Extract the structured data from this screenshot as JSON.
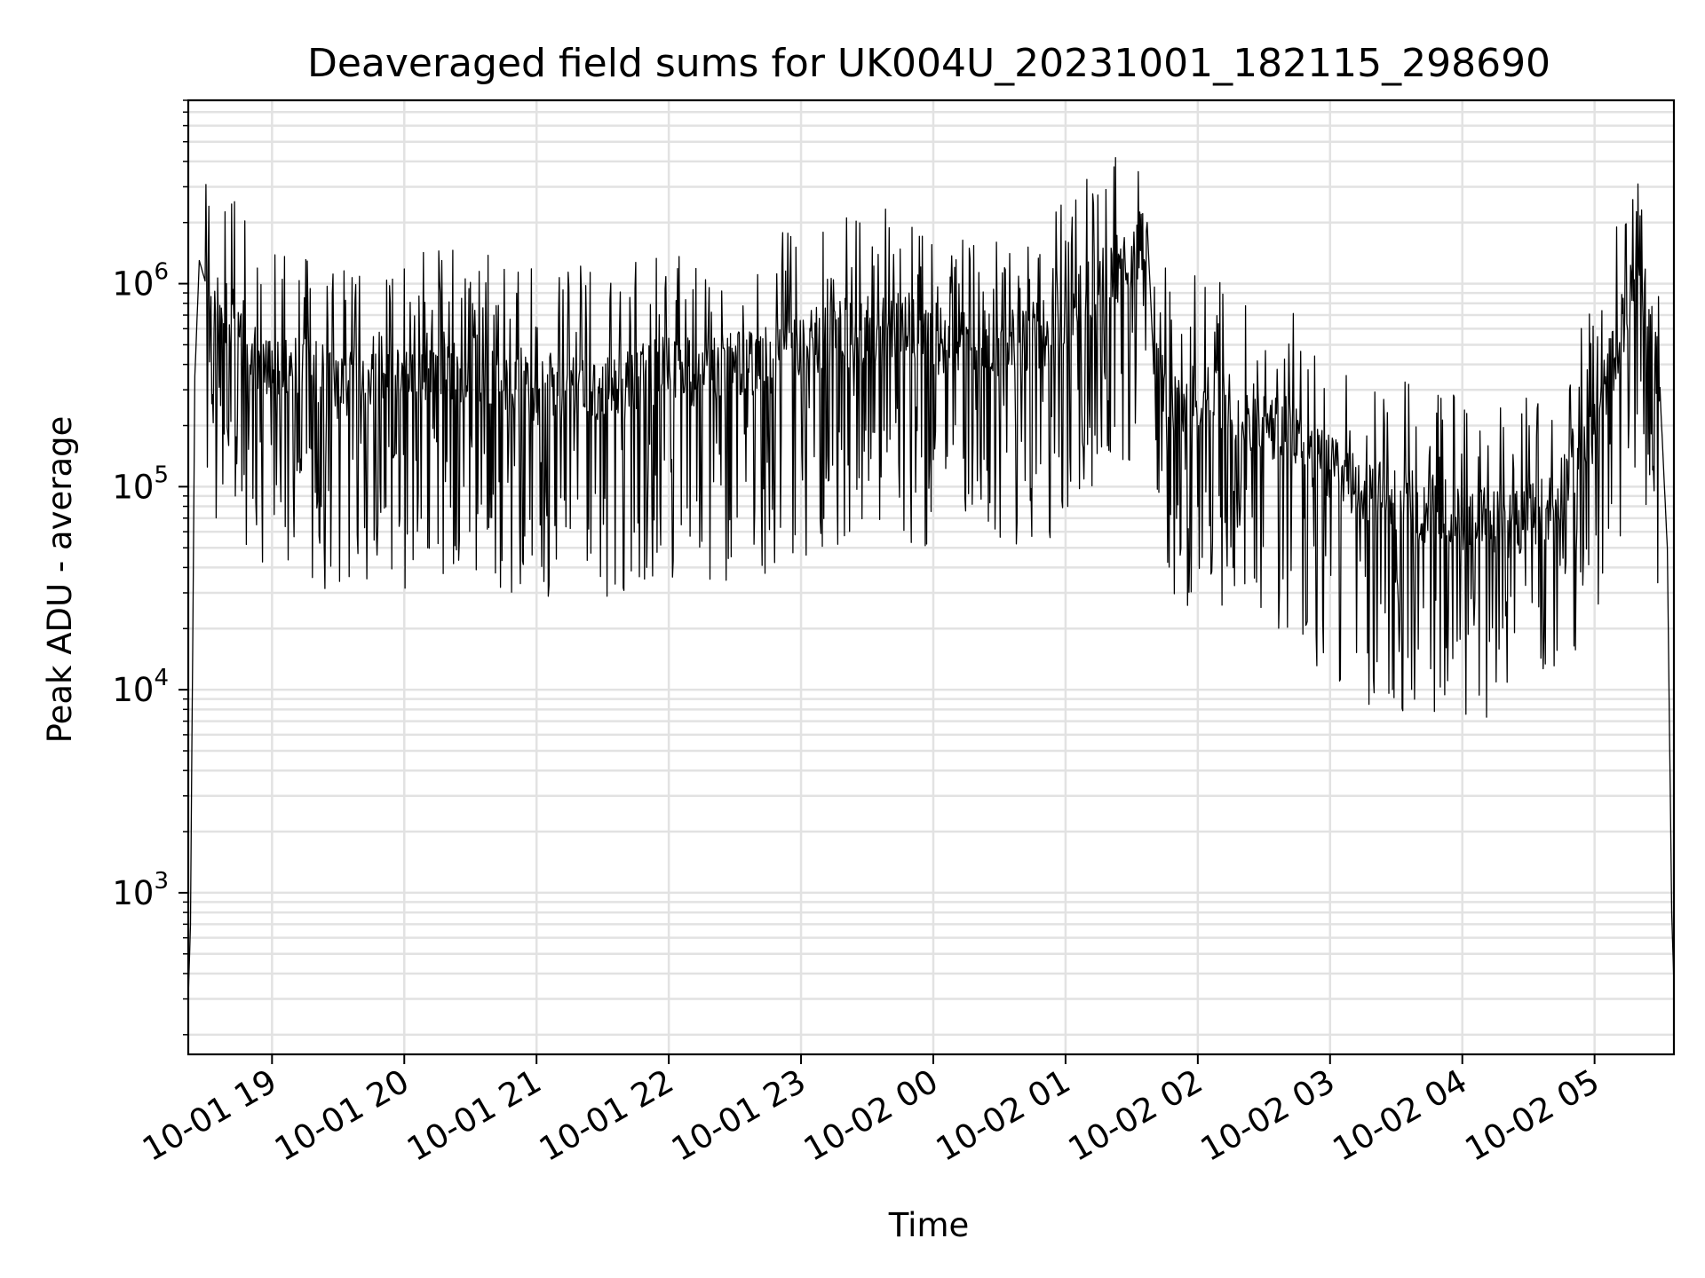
{
  "chart_data": {
    "type": "line",
    "title": "Deaveraged field sums for UK004U_20231001_182115_298690",
    "xlabel": "Time",
    "ylabel": "Peak ADU - average",
    "yscale": "log",
    "ylim": [
      160,
      8000000
    ],
    "xlim": [
      "2023-10-01 18:22",
      "2023-10-02 05:36"
    ],
    "grid": true,
    "legend": "none",
    "line_color": "#000000",
    "x_ticks": [
      {
        "t": "2023-10-01 19:00",
        "label": "10-01 19"
      },
      {
        "t": "2023-10-01 20:00",
        "label": "10-01 20"
      },
      {
        "t": "2023-10-01 21:00",
        "label": "10-01 21"
      },
      {
        "t": "2023-10-01 22:00",
        "label": "10-01 22"
      },
      {
        "t": "2023-10-01 23:00",
        "label": "10-01 23"
      },
      {
        "t": "2023-10-02 00:00",
        "label": "10-02 00"
      },
      {
        "t": "2023-10-02 01:00",
        "label": "10-02 01"
      },
      {
        "t": "2023-10-02 02:00",
        "label": "10-02 02"
      },
      {
        "t": "2023-10-02 03:00",
        "label": "10-02 03"
      },
      {
        "t": "2023-10-02 04:00",
        "label": "10-02 04"
      },
      {
        "t": "2023-10-02 05:00",
        "label": "10-02 05"
      }
    ],
    "y_ticks": [
      {
        "value": 1000,
        "base": "10",
        "exp": "3"
      },
      {
        "value": 10000,
        "base": "10",
        "exp": "4"
      },
      {
        "value": 100000,
        "base": "10",
        "exp": "5"
      },
      {
        "value": 1000000,
        "base": "10",
        "exp": "6"
      }
    ],
    "series": [
      {
        "x": [
          "2023-10-01 18:22",
          "2023-10-01 18:23",
          "2023-10-01 18:25",
          "2023-10-01 18:27",
          "2023-10-01 18:30",
          "2023-10-01 18:34",
          "2023-10-01 18:40",
          "2023-10-01 18:45",
          "2023-10-01 18:50",
          "2023-10-01 18:55",
          "2023-10-01 19:00",
          "2023-10-01 19:10",
          "2023-10-01 19:20",
          "2023-10-01 19:30",
          "2023-10-01 19:40",
          "2023-10-01 19:50",
          "2023-10-01 20:00",
          "2023-10-01 20:15",
          "2023-10-01 20:30",
          "2023-10-01 20:45",
          "2023-10-01 21:00",
          "2023-10-01 21:15",
          "2023-10-01 21:30",
          "2023-10-01 21:45",
          "2023-10-01 22:00",
          "2023-10-01 22:15",
          "2023-10-01 22:30",
          "2023-10-01 22:45",
          "2023-10-01 23:00",
          "2023-10-01 23:15",
          "2023-10-01 23:30",
          "2023-10-01 23:45",
          "2023-10-02 00:00",
          "2023-10-02 00:08",
          "2023-10-02 00:20",
          "2023-10-02 00:40",
          "2023-10-02 00:55",
          "2023-10-02 01:10",
          "2023-10-02 01:20",
          "2023-10-02 01:30",
          "2023-10-02 01:37",
          "2023-10-02 01:40",
          "2023-10-02 01:50",
          "2023-10-02 02:00",
          "2023-10-02 02:15",
          "2023-10-02 02:30",
          "2023-10-02 02:45",
          "2023-10-02 03:00",
          "2023-10-02 03:10",
          "2023-10-02 03:20",
          "2023-10-02 03:40",
          "2023-10-02 04:00",
          "2023-10-02 04:20",
          "2023-10-02 04:40",
          "2023-10-02 04:50",
          "2023-10-02 05:00",
          "2023-10-02 05:10",
          "2023-10-02 05:17",
          "2023-10-02 05:22",
          "2023-10-02 05:26",
          "2023-10-02 05:30",
          "2023-10-02 05:33",
          "2023-10-02 05:35",
          "2023-10-02 05:36"
        ],
        "y": [
          300,
          700,
          350000,
          1300000,
          1000000,
          750000,
          700000,
          600000,
          500000,
          400000,
          350000,
          400000,
          350000,
          300000,
          350000,
          400000,
          350000,
          400000,
          380000,
          350000,
          300000,
          320000,
          300000,
          330000,
          380000,
          350000,
          400000,
          420000,
          500000,
          550000,
          600000,
          620000,
          550000,
          500000,
          500000,
          520000,
          600000,
          900000,
          1100000,
          1300000,
          2000000,
          400000,
          250000,
          280000,
          250000,
          200000,
          180000,
          120000,
          100000,
          90000,
          80000,
          70000,
          65000,
          80000,
          130000,
          200000,
          500000,
          900000,
          1000000,
          700000,
          250000,
          50000,
          800,
          350
        ]
      }
    ]
  }
}
